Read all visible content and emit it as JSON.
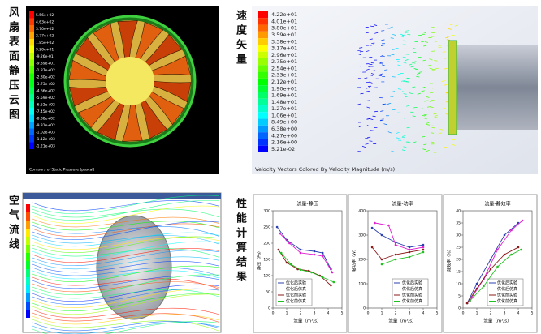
{
  "pressure_panel": {
    "label": "风扇表面静压云图",
    "caption": "Contours of Static Pressure (pascal)",
    "colorbar": [
      "5.56e+02",
      "4.63e+02",
      "3.70e+02",
      "2.77e+02",
      "1.85e+02",
      "9.20e+01",
      "-9.26e-01",
      "-9.39e+01",
      "-1.87e+02",
      "-2.80e+02",
      "-3.73e+02",
      "-4.66e+02",
      "-5.59e+02",
      "-6.52e+02",
      "-7.45e+02",
      "-8.38e+02",
      "-9.31e+02",
      "-1.02e+03",
      "-1.12e+03",
      "-1.21e+03"
    ]
  },
  "velocity_panel": {
    "label": "速度矢量",
    "caption": "Velocity Vectors Colored By Velocity Magnitude (m/s)",
    "colorbar": [
      "4.22e+01",
      "4.01e+01",
      "3.80e+01",
      "3.59e+01",
      "3.38e+01",
      "3.17e+01",
      "2.96e+01",
      "2.75e+01",
      "2.54e+01",
      "2.33e+01",
      "2.12e+01",
      "1.90e+01",
      "1.69e+01",
      "1.48e+01",
      "1.27e+01",
      "1.06e+01",
      "8.49e+00",
      "6.38e+00",
      "4.27e+00",
      "2.16e+00",
      "5.21e-02"
    ]
  },
  "streamline_panel": {
    "label": "空气流线"
  },
  "performance_panel": {
    "label": "性能计算结果",
    "charts": [
      {
        "type": "line",
        "title": "流量-静压",
        "xlabel": "流量（m³/s）",
        "ylabel": "静压（Pa）",
        "xlim": [
          0,
          5
        ],
        "xticks": [
          0,
          1,
          2,
          3,
          4,
          5
        ],
        "ylim": [
          0,
          300
        ],
        "yticks": [
          0,
          50,
          100,
          150,
          200,
          250,
          300
        ],
        "series": [
          {
            "name": "优化后实验",
            "color": "#2b3fb0",
            "x": [
              0.3,
              1,
              2,
              3,
              3.6,
              4.2
            ],
            "values": [
              250,
              210,
              180,
              175,
              170,
              120
            ]
          },
          {
            "name": "优化后仿真",
            "color": "#e020d0",
            "x": [
              0.5,
              1.2,
              2,
              3,
              3.6,
              4.3
            ],
            "values": [
              230,
              200,
              170,
              165,
              160,
              110
            ]
          },
          {
            "name": "优化前实验",
            "color": "#8b1a1a",
            "x": [
              0.4,
              1,
              1.8,
              2.6,
              3.4,
              4.2
            ],
            "values": [
              180,
              140,
              120,
              115,
              100,
              70
            ]
          },
          {
            "name": "优化前仿真",
            "color": "#20c020",
            "x": [
              0.6,
              1.3,
              2,
              2.8,
              3.6,
              4.4
            ],
            "values": [
              170,
              135,
              118,
              110,
              95,
              80
            ]
          }
        ]
      },
      {
        "type": "line",
        "title": "流量-功率",
        "xlabel": "流量（m³/s）",
        "ylabel": "轴功率（W）",
        "xlim": [
          0,
          5
        ],
        "xticks": [
          0,
          1,
          2,
          3,
          4,
          5
        ],
        "ylim": [
          0,
          400
        ],
        "yticks": [
          0,
          100,
          200,
          300,
          400
        ],
        "series": [
          {
            "name": "优化后实验",
            "color": "#2b3fb0",
            "x": [
              0.3,
              1,
              2,
              3,
              4
            ],
            "values": [
              330,
              300,
              270,
              250,
              260
            ]
          },
          {
            "name": "优化后仿真",
            "color": "#e020d0",
            "x": [
              0.5,
              1.5,
              2,
              3,
              4
            ],
            "values": [
              350,
              340,
              260,
              240,
              250
            ]
          },
          {
            "name": "优化前实验",
            "color": "#8b1a1a",
            "x": [
              0.3,
              1,
              2,
              3,
              4
            ],
            "values": [
              250,
              200,
              220,
              230,
              240
            ]
          },
          {
            "name": "优化前仿真",
            "color": "#20c020",
            "x": [
              1,
              2,
              3,
              4
            ],
            "values": [
              180,
              200,
              210,
              230
            ]
          }
        ]
      },
      {
        "type": "line",
        "title": "流量-静效率",
        "xlabel": "流量（m³/s）",
        "ylabel": "静效率（%）",
        "xlim": [
          0,
          5
        ],
        "xticks": [
          0,
          1,
          2,
          3,
          4,
          5
        ],
        "ylim": [
          0,
          40
        ],
        "yticks": [
          0,
          5,
          10,
          15,
          20,
          25,
          30,
          35,
          40
        ],
        "series": [
          {
            "name": "优化后实验",
            "color": "#2b3fb0",
            "x": [
              0.3,
              1,
              2,
              3,
              4
            ],
            "values": [
              2,
              10,
              20,
              30,
              35
            ]
          },
          {
            "name": "优化后仿真",
            "color": "#e020d0",
            "x": [
              0.5,
              1.5,
              2.5,
              3.5,
              4.3
            ],
            "values": [
              3,
              12,
              24,
              32,
              36
            ]
          },
          {
            "name": "优化前实验",
            "color": "#8b1a1a",
            "x": [
              0.3,
              1,
              2,
              3,
              4
            ],
            "values": [
              2,
              8,
              16,
              22,
              25
            ]
          },
          {
            "name": "优化前仿真",
            "color": "#20c020",
            "x": [
              0.5,
              1.5,
              2.5,
              3.5,
              4.2
            ],
            "values": [
              3,
              9,
              17,
              22,
              24
            ]
          }
        ]
      }
    ]
  }
}
